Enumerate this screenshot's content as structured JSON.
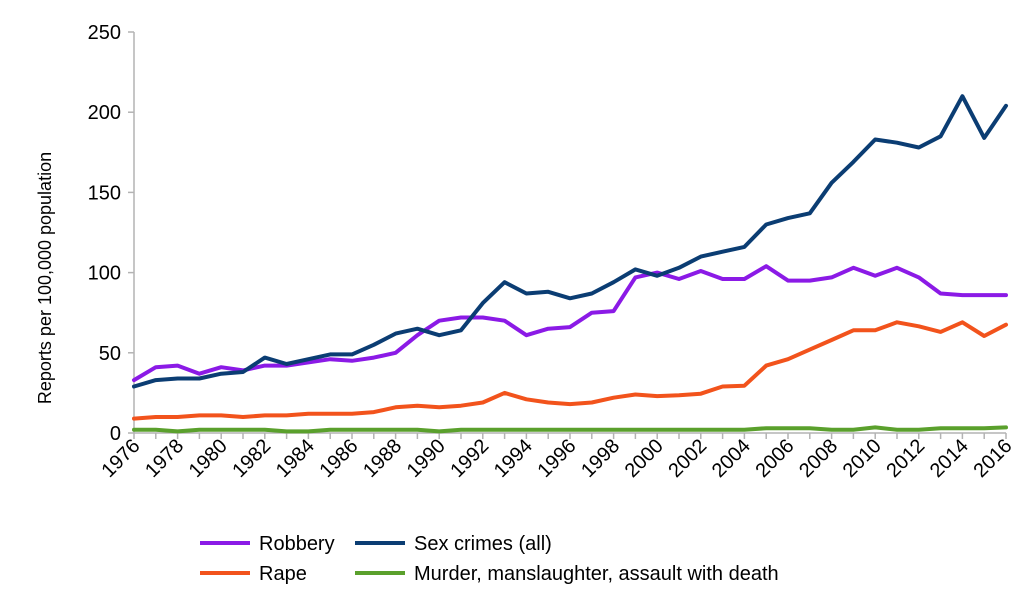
{
  "chart_data": {
    "type": "line",
    "title": "",
    "xlabel": "",
    "ylabel": "Reports per 100,000 population",
    "ylim": [
      0,
      250
    ],
    "yticks": [
      0,
      50,
      100,
      150,
      200,
      250
    ],
    "xlim": [
      1976,
      2016
    ],
    "xtick_labels": [
      "1976",
      "1978",
      "1980",
      "1982",
      "1984",
      "1986",
      "1988",
      "1990",
      "1992",
      "1994",
      "1996",
      "1998",
      "2000",
      "2002",
      "2004",
      "2006",
      "2008",
      "2010",
      "2012",
      "2014",
      "2016"
    ],
    "x": [
      1976,
      1977,
      1978,
      1979,
      1980,
      1981,
      1982,
      1983,
      1984,
      1985,
      1986,
      1987,
      1988,
      1989,
      1990,
      1991,
      1992,
      1993,
      1994,
      1995,
      1996,
      1997,
      1998,
      1999,
      2000,
      2001,
      2002,
      2003,
      2004,
      2005,
      2006,
      2007,
      2008,
      2009,
      2010,
      2011,
      2012,
      2013,
      2014,
      2015,
      2016
    ],
    "grid": false,
    "legend": "bottom",
    "series": [
      {
        "name": "Robbery",
        "color": "#8b1ae6",
        "values": [
          33,
          41,
          42,
          37,
          41,
          39,
          42,
          42,
          44,
          46,
          45,
          47,
          50,
          61,
          70,
          72,
          72,
          70,
          61,
          65,
          66,
          75,
          76,
          97,
          100,
          96,
          101,
          96,
          96,
          104,
          95,
          95,
          97,
          103,
          98,
          103,
          97,
          87,
          86,
          86,
          86
        ]
      },
      {
        "name": "Sex crimes (all)",
        "color": "#0b3d73",
        "values": [
          29,
          33,
          34,
          34,
          37,
          38,
          47,
          43,
          46,
          49,
          49,
          55,
          62,
          65,
          61,
          64,
          81,
          94,
          87,
          88,
          84,
          87,
          94,
          102,
          98,
          103,
          110,
          113,
          116,
          130,
          134,
          137,
          156,
          169,
          183,
          181,
          178,
          185,
          210,
          184,
          204
        ]
      },
      {
        "name": "Rape",
        "color": "#f2531c",
        "values": [
          9,
          10,
          10,
          11,
          11,
          10,
          11,
          11,
          12,
          12,
          12,
          13,
          16,
          17,
          16,
          17,
          19,
          25,
          21,
          19,
          18,
          19,
          22,
          24,
          23,
          23.5,
          24.5,
          29,
          29.5,
          42,
          46,
          52,
          58,
          64,
          64,
          69,
          66.5,
          63,
          69,
          60.5,
          67.5
        ]
      },
      {
        "name": "Murder, manslaughter, assault with death",
        "color": "#5aa02c",
        "values": [
          2,
          2,
          1,
          2,
          2,
          2,
          2,
          1,
          1,
          2,
          2,
          2,
          2,
          2,
          1,
          2,
          2,
          2,
          2,
          2,
          2,
          2,
          2,
          2,
          2,
          2,
          2,
          2,
          2,
          3,
          3,
          3,
          2,
          2,
          3.5,
          2,
          2,
          3,
          3,
          3,
          3.5
        ]
      }
    ]
  }
}
